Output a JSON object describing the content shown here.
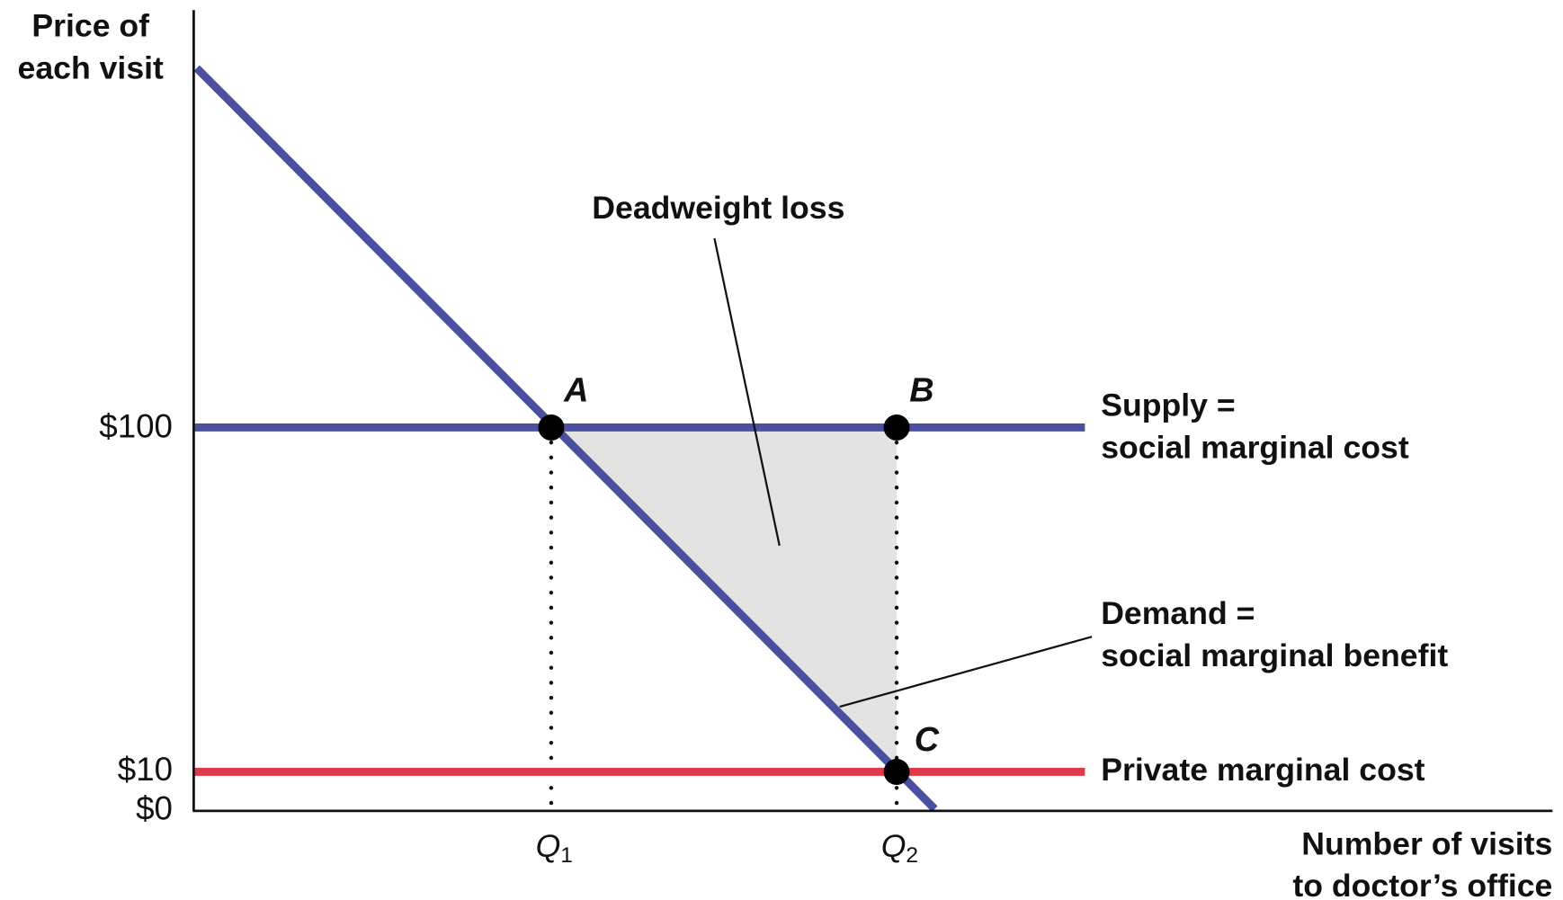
{
  "y_axis_label": [
    "Price of",
    "each visit"
  ],
  "x_axis_label": [
    "Number of visits",
    "to doctor’s office"
  ],
  "y_ticks": [
    "$100",
    "$10",
    "$0"
  ],
  "x_ticks": [
    {
      "main": "Q",
      "sub": "1"
    },
    {
      "main": "Q",
      "sub": "2"
    }
  ],
  "points": [
    "A",
    "B",
    "C"
  ],
  "annotation": "Deadweight loss",
  "curves": {
    "supply": [
      "Supply =",
      "social marginal cost"
    ],
    "demand": [
      "Demand =",
      "social marginal benefit"
    ],
    "private": "Private marginal cost"
  }
}
